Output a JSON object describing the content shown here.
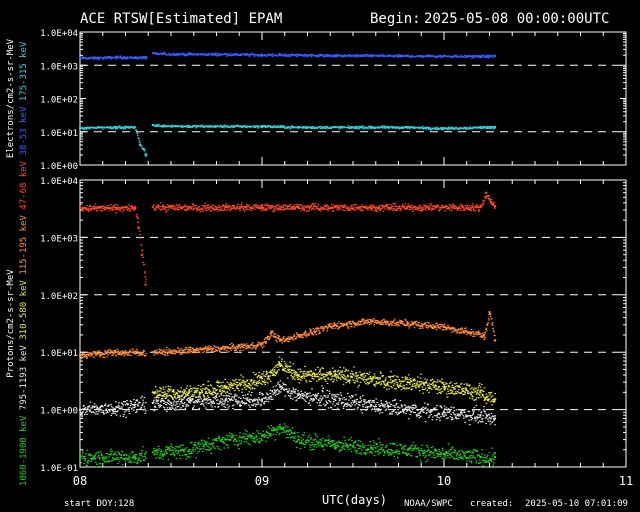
{
  "header": {
    "title": "ACE RTSW[Estimated] EPAM",
    "begin_label": "Begin:",
    "begin_value": "2025-05-08 00:00:00UTC"
  },
  "footer": {
    "start_doy_label": "start DOY:",
    "start_doy_value": "128",
    "xlabel": "UTC(days)",
    "source": "NOAA/SWPC",
    "created_label": "created:",
    "created_value": "2025-05-10 07:01:09"
  },
  "colors": {
    "background": "#000000",
    "axis": "#ffffff",
    "e_38_53": "#3b5bff",
    "e_175_315": "#38d0d8",
    "p_47_68": "#ff4a2a",
    "p_115_195": "#ff8c3a",
    "p_310_580": "#e8e84a",
    "p_795_1193": "#e6e6e6",
    "p_1060_1900": "#22d022"
  },
  "chart_data": [
    {
      "type": "scatter",
      "panel": "electrons",
      "ylabel": [
        "Electrons/cm2-s-sr-MeV"
      ],
      "channel_labels": [
        {
          "text": "38-53 keV",
          "color": "#3b5bff"
        },
        {
          "text": "175-315 keV",
          "color": "#38d0d8"
        }
      ],
      "yscale": "log",
      "ylim": [
        1,
        10000
      ],
      "yticks": [
        "1.0E+00",
        "1.0E+01",
        "1.0E+02",
        "1.0E+03",
        "1.0E+04"
      ],
      "dashed_reference_lines": [
        10,
        1000
      ],
      "xlim": [
        8,
        11
      ],
      "xticks": [
        "08",
        "09",
        "10",
        "11"
      ],
      "data_gaps": [
        [
          8.365,
          8.4
        ],
        [
          10.29,
          11
        ]
      ],
      "series": [
        {
          "name": "38-53 keV",
          "color": "#3b5bff",
          "x": [
            8.0,
            8.1,
            8.2,
            8.3,
            8.36,
            8.4,
            8.6,
            8.8,
            9.0,
            9.2,
            9.4,
            9.6,
            9.8,
            10.0,
            10.2,
            10.28
          ],
          "y": [
            1700,
            1700,
            1800,
            1750,
            1750,
            2300,
            2200,
            2200,
            2100,
            2100,
            2000,
            2000,
            1950,
            1950,
            1900,
            1950
          ]
        },
        {
          "name": "175-315 keV",
          "color": "#38d0d8",
          "x": [
            8.0,
            8.1,
            8.2,
            8.3,
            8.33,
            8.35,
            8.36,
            8.4,
            8.6,
            8.8,
            9.0,
            9.2,
            9.4,
            9.6,
            9.8,
            10.0,
            10.2,
            10.28
          ],
          "y": [
            13,
            14,
            14,
            14,
            4,
            3,
            2,
            16,
            15,
            15,
            15,
            14,
            14,
            14,
            14,
            13,
            14,
            14
          ]
        }
      ]
    },
    {
      "type": "scatter",
      "panel": "protons",
      "ylabel": [
        "Protons/cm2-s-sr-MeV"
      ],
      "channel_labels": [
        {
          "text": "1060-1900 keV",
          "color": "#22d022"
        },
        {
          "text": "795-1193 keV",
          "color": "#e6e6e6"
        },
        {
          "text": "310-580 keV",
          "color": "#e8e84a"
        },
        {
          "text": "115-195 keV",
          "color": "#ff8c3a"
        },
        {
          "text": "47-68 keV",
          "color": "#ff4a2a"
        }
      ],
      "yscale": "log",
      "ylim": [
        0.1,
        10000
      ],
      "yticks": [
        "1.0E-01",
        "1.0E+00",
        "1.0E+01",
        "1.0E+02",
        "1.0E+03",
        "1.0E+04"
      ],
      "dashed_reference_lines": [
        1,
        10,
        100,
        1000
      ],
      "xlim": [
        8,
        11
      ],
      "xticks": [
        "08",
        "09",
        "10",
        "11"
      ],
      "data_gaps": [
        [
          8.36,
          8.4
        ],
        [
          10.29,
          11
        ]
      ],
      "series": [
        {
          "name": "47-68 keV",
          "color": "#ff4a2a",
          "x": [
            8.0,
            8.2,
            8.3,
            8.32,
            8.34,
            8.36,
            8.4,
            8.6,
            8.8,
            9.0,
            9.2,
            9.4,
            9.6,
            9.8,
            10.0,
            10.2,
            10.23,
            10.26,
            10.28
          ],
          "y": [
            3300,
            3300,
            3300,
            1500,
            500,
            150,
            3400,
            3400,
            3400,
            3400,
            3400,
            3400,
            3400,
            3400,
            3400,
            3400,
            6000,
            4000,
            3500
          ]
        },
        {
          "name": "115-195 keV",
          "color": "#ff8c3a",
          "x": [
            8.0,
            8.15,
            8.3,
            8.4,
            8.6,
            8.8,
            9.0,
            9.05,
            9.1,
            9.2,
            9.4,
            9.6,
            9.8,
            10.0,
            10.15,
            10.22,
            10.25,
            10.28
          ],
          "y": [
            9,
            10,
            10,
            10,
            11,
            12,
            14,
            22,
            16,
            20,
            30,
            35,
            32,
            28,
            22,
            20,
            50,
            16
          ]
        },
        {
          "name": "310-580 keV",
          "color": "#e8e84a",
          "x": [
            8.4,
            8.6,
            8.8,
            9.0,
            9.1,
            9.2,
            9.4,
            9.6,
            9.8,
            10.0,
            10.2,
            10.28
          ],
          "y": [
            2,
            2,
            2.5,
            3.5,
            6,
            4,
            4,
            3.5,
            3,
            2.5,
            2,
            1.5
          ]
        },
        {
          "name": "795-1193 keV",
          "color": "#e6e6e6",
          "x": [
            8.0,
            8.2,
            8.3,
            8.4,
            8.6,
            8.8,
            9.0,
            9.1,
            9.2,
            9.4,
            9.6,
            9.8,
            10.0,
            10.2,
            10.28
          ],
          "y": [
            1.0,
            1.1,
            1.2,
            1.3,
            1.4,
            1.5,
            1.5,
            2.5,
            1.8,
            1.5,
            1.2,
            1.0,
            0.9,
            0.8,
            0.7
          ]
        },
        {
          "name": "1060-1900 keV",
          "color": "#22d022",
          "x": [
            8.0,
            8.3,
            8.4,
            8.6,
            8.8,
            9.0,
            9.1,
            9.2,
            9.4,
            9.6,
            9.8,
            10.0,
            10.2,
            10.28
          ],
          "y": [
            0.15,
            0.15,
            0.18,
            0.2,
            0.3,
            0.35,
            0.5,
            0.3,
            0.25,
            0.22,
            0.2,
            0.17,
            0.15,
            0.15
          ]
        }
      ]
    }
  ]
}
